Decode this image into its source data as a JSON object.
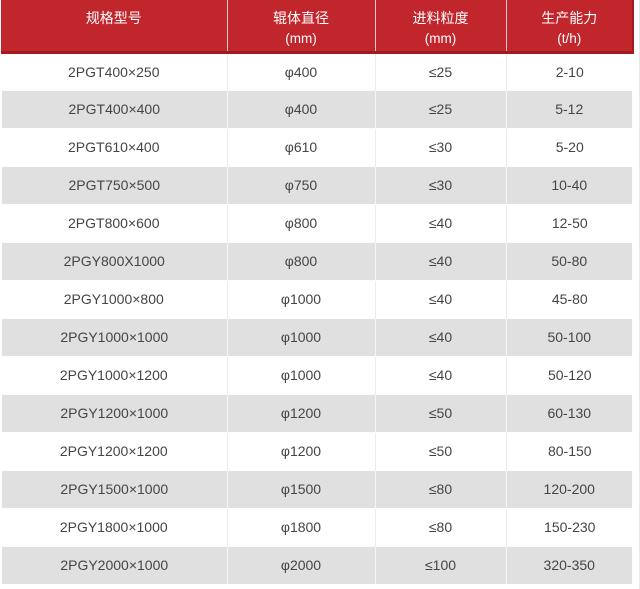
{
  "colors": {
    "header_bg": "#c1262c",
    "header_dark_border": "#a31a1f",
    "header_text": "#ffffff",
    "row_alt_bg": "#e0e0e0",
    "row_text": "#454545"
  },
  "chart_data": {
    "type": "table",
    "columns": [
      {
        "label": "规格型号",
        "unit": ""
      },
      {
        "label": "辊体直径",
        "unit": "(mm)"
      },
      {
        "label": "进料粒度",
        "unit": "(mm)"
      },
      {
        "label": "生产能力",
        "unit": "(t/h)"
      }
    ],
    "rows": [
      [
        "2PGT400×250",
        "φ400",
        "≤25",
        "2-10"
      ],
      [
        "2PGT400×400",
        "φ400",
        "≤25",
        "5-12"
      ],
      [
        "2PGT610×400",
        "φ610",
        "≤30",
        "5-20"
      ],
      [
        "2PGT750×500",
        "φ750",
        "≤30",
        "10-40"
      ],
      [
        "2PGT800×600",
        "φ800",
        "≤40",
        "12-50"
      ],
      [
        "2PGY800X1000",
        "φ800",
        "≤40",
        "50-80"
      ],
      [
        "2PGY1000×800",
        "φ1000",
        "≤40",
        "45-80"
      ],
      [
        "2PGY1000×1000",
        "φ1000",
        "≤40",
        "50-100"
      ],
      [
        "2PGY1000×1200",
        "φ1000",
        "≤40",
        "50-120"
      ],
      [
        "2PGY1200×1000",
        "φ1200",
        "≤50",
        "60-130"
      ],
      [
        "2PGY1200×1200",
        "φ1200",
        "≤50",
        "80-150"
      ],
      [
        "2PGY1500×1000",
        "φ1500",
        "≤80",
        "120-200"
      ],
      [
        "2PGY1800×1000",
        "φ1800",
        "≤80",
        "150-230"
      ],
      [
        "2PGY2000×1000",
        "φ2000",
        "≤100",
        "320-350"
      ]
    ]
  }
}
